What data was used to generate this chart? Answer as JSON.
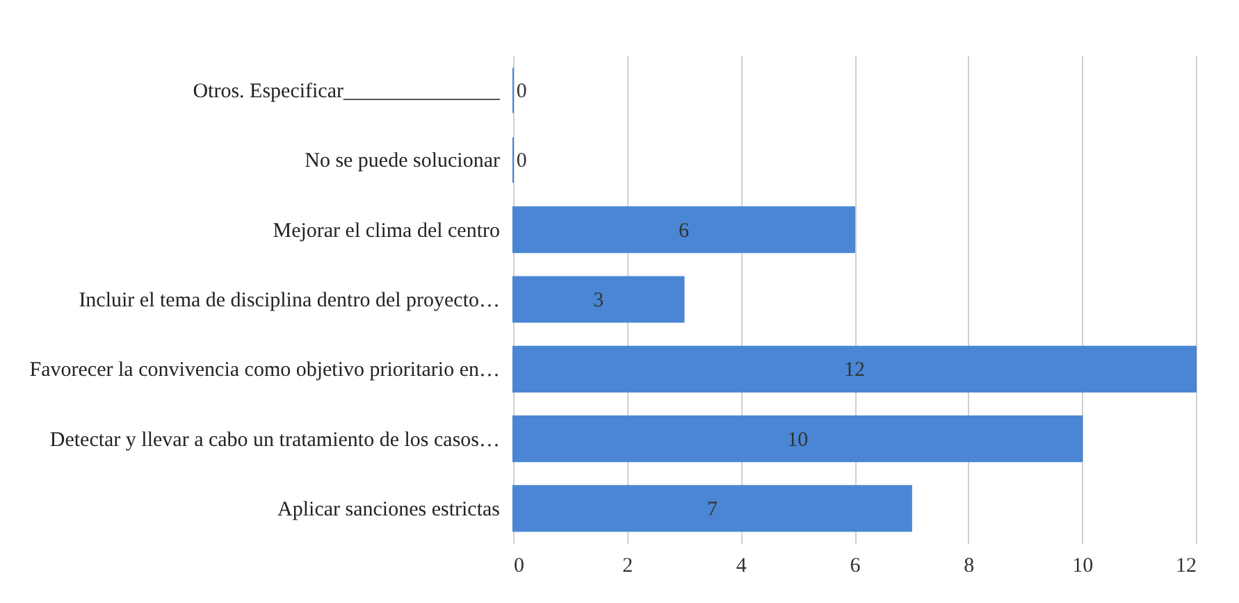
{
  "chart_data": {
    "type": "bar",
    "orientation": "horizontal",
    "categories": [
      "Otros. Especificar_______________",
      "No se puede solucionar",
      "Mejorar el clima del centro",
      "Incluir el tema de disciplina dentro del proyecto…",
      "Favorecer la convivencia como objetivo prioritario en…",
      "Detectar y llevar a cabo un tratamiento de los casos…",
      "Aplicar sanciones estrictas"
    ],
    "values": [
      0,
      0,
      6,
      3,
      12,
      10,
      7
    ],
    "color": "#4a86d4",
    "xlim": [
      0,
      12
    ],
    "xticks": [
      0,
      2,
      4,
      6,
      8,
      10,
      12
    ],
    "grid": "x",
    "data_labels": true
  }
}
